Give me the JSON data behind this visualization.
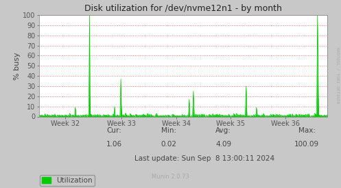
{
  "title": "Disk utilization for /dev/nvme12n1 - by month",
  "ylabel": "% busy",
  "xlabel_ticks": [
    "Week 32",
    "Week 33",
    "Week 34",
    "Week 35",
    "Week 36"
  ],
  "xlabel_tick_positions": [
    0.09,
    0.285,
    0.475,
    0.665,
    0.855
  ],
  "ylim": [
    0,
    100
  ],
  "xlim": [
    0,
    1
  ],
  "line_color": "#00cc00",
  "fill_color": "#00cc00",
  "bg_color": "#c8c8c8",
  "plot_bg_color": "#ffffff",
  "grid_color": "#ff8080",
  "title_color": "#222222",
  "stats_cur": "1.06",
  "stats_min": "0.02",
  "stats_avg": "4.09",
  "stats_max": "100.09",
  "last_update": "Last update: Sun Sep  8 13:00:11 2024",
  "munin_version": "Munin 2.0.73",
  "legend_label": "Utilization",
  "watermark": "RRDTOOL / TOBI OETIKER"
}
